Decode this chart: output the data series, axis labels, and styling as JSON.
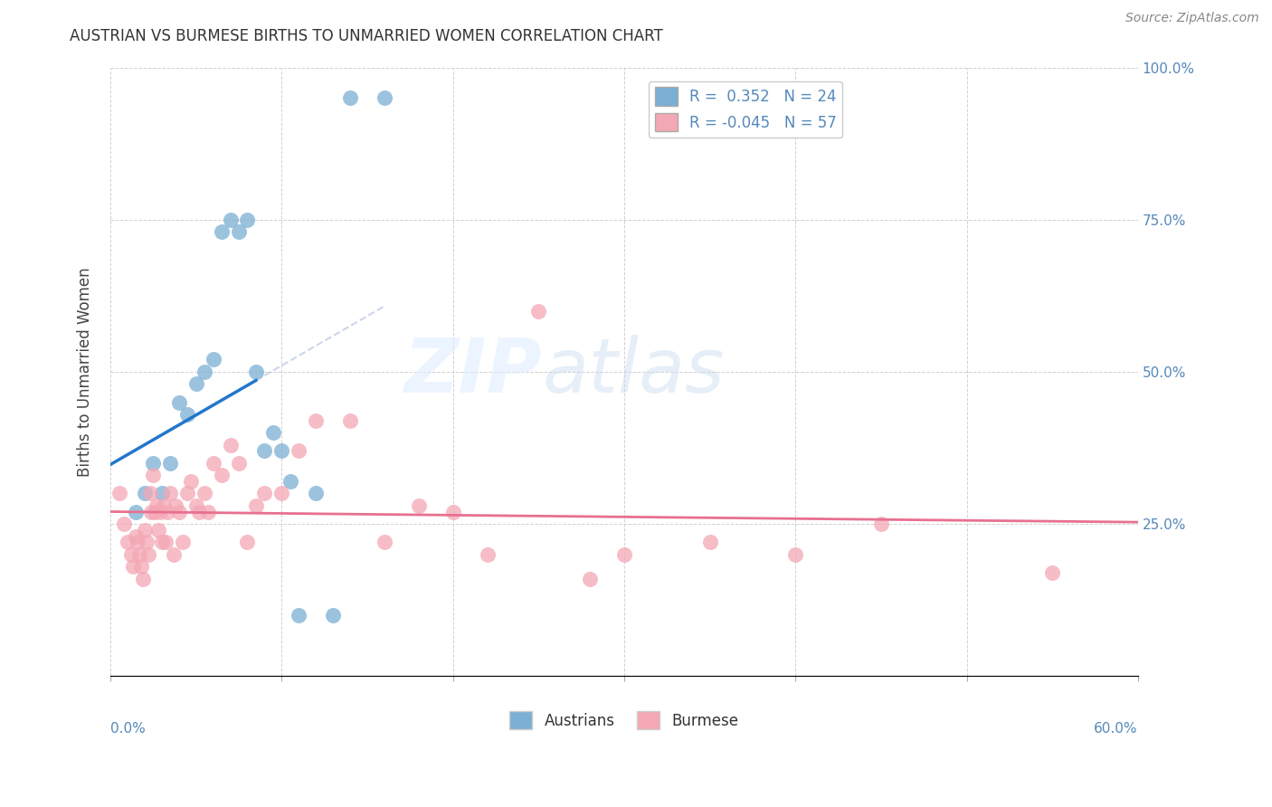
{
  "title": "AUSTRIAN VS BURMESE BIRTHS TO UNMARRIED WOMEN CORRELATION CHART",
  "source": "Source: ZipAtlas.com",
  "ylabel": "Births to Unmarried Women",
  "watermark_zip": "ZIP",
  "watermark_atlas": "atlas",
  "xlim": [
    0.0,
    60.0
  ],
  "ylim": [
    0.0,
    100.0
  ],
  "right_yticks": [
    25.0,
    50.0,
    75.0,
    100.0
  ],
  "austrians_R": 0.352,
  "austrians_N": 24,
  "burmese_R": -0.045,
  "burmese_N": 57,
  "austrians_color": "#7BAFD4",
  "burmese_color": "#F4A7B5",
  "trend_blue": "#2277CC",
  "trend_pink": "#E87090",
  "trend_blue_dash": "#AABBDD",
  "austrians_x": [
    1.5,
    2.0,
    2.5,
    3.0,
    3.5,
    4.0,
    4.5,
    5.0,
    5.5,
    6.0,
    6.5,
    7.0,
    7.5,
    8.0,
    8.5,
    9.0,
    9.5,
    10.0,
    10.5,
    11.0,
    12.0,
    13.0,
    14.0,
    16.0
  ],
  "austrians_y": [
    27,
    30,
    35,
    30,
    35,
    45,
    43,
    48,
    50,
    52,
    73,
    75,
    73,
    75,
    50,
    37,
    40,
    37,
    32,
    10,
    30,
    10,
    95,
    95
  ],
  "burmese_x": [
    0.5,
    0.8,
    1.0,
    1.2,
    1.3,
    1.5,
    1.6,
    1.7,
    1.8,
    1.9,
    2.0,
    2.1,
    2.2,
    2.3,
    2.4,
    2.5,
    2.6,
    2.7,
    2.8,
    2.9,
    3.0,
    3.1,
    3.2,
    3.3,
    3.5,
    3.7,
    3.8,
    4.0,
    4.2,
    4.5,
    4.7,
    5.0,
    5.2,
    5.5,
    5.7,
    6.0,
    6.5,
    7.0,
    7.5,
    8.0,
    8.5,
    9.0,
    10.0,
    11.0,
    12.0,
    14.0,
    16.0,
    18.0,
    20.0,
    22.0,
    25.0,
    28.0,
    30.0,
    35.0,
    40.0,
    45.0,
    55.0
  ],
  "burmese_y": [
    30,
    25,
    22,
    20,
    18,
    23,
    22,
    20,
    18,
    16,
    24,
    22,
    20,
    30,
    27,
    33,
    27,
    28,
    24,
    27,
    22,
    28,
    22,
    27,
    30,
    20,
    28,
    27,
    22,
    30,
    32,
    28,
    27,
    30,
    27,
    35,
    33,
    38,
    35,
    22,
    28,
    30,
    30,
    37,
    42,
    42,
    22,
    28,
    27,
    20,
    60,
    16,
    20,
    22,
    20,
    25,
    17
  ]
}
